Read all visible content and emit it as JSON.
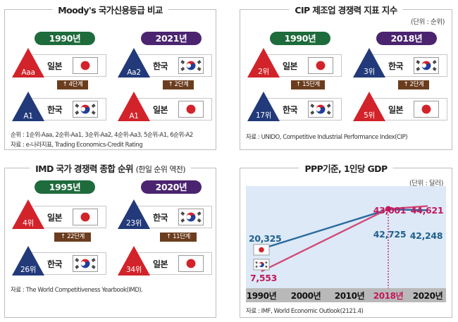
{
  "colors": {
    "red": "#d2232a",
    "navy": "#223a7a",
    "green": "#1e6b3c",
    "purple": "#4b2470",
    "brown": "#6b3d1e",
    "korea_line": "#2a6a9e",
    "japan_line": "#d04a79",
    "highlight": "#c2185b"
  },
  "moody": {
    "title": "Moody's 국가신용등급 비교",
    "left_year": "1990년",
    "right_year": "2021년",
    "left_top": {
      "grade": "Aaa",
      "country": "일본",
      "flag": "japan-flag-icon"
    },
    "left_bottom": {
      "grade": "A1",
      "country": "한국",
      "flag": "korea-flag-icon"
    },
    "left_step": "↑ 4단계",
    "right_top": {
      "grade": "Aa2",
      "country": "한국",
      "flag": "korea-flag-icon"
    },
    "right_bottom": {
      "grade": "A1",
      "country": "일본",
      "flag": "japan-flag-icon"
    },
    "right_step": "↑ 2단계",
    "note1": "순위 : 1순위-Aaa, 2순위-Aa1, 3순위-Aa2, 4순위-Aa3, 5순위-A1, 6순위-A2",
    "note2": "자료 : e-나라지표, Trading Economics-Credit Rating"
  },
  "cip": {
    "title": "CIP 제조업 경쟁력 지표 지수",
    "unit": "(단위 : 순위)",
    "left_year": "1990년",
    "right_year": "2018년",
    "left_top": {
      "grade": "2위",
      "country": "일본",
      "flag": "japan-flag-icon"
    },
    "left_bottom": {
      "grade": "17위",
      "country": "한국",
      "flag": "korea-flag-icon"
    },
    "left_step": "↑ 15단계",
    "right_top": {
      "grade": "3위",
      "country": "한국",
      "flag": "korea-flag-icon"
    },
    "right_bottom": {
      "grade": "5위",
      "country": "일본",
      "flag": "japan-flag-icon"
    },
    "right_step": "↑ 2단계",
    "note1": "자료 : UNIDO, Competitive Industrial Performance Index(CIP)"
  },
  "imd": {
    "title": "IMD 국가 경쟁력 종합 순위",
    "title_sub": "(한일 순위 역전)",
    "left_year": "1995년",
    "right_year": "2020년",
    "left_top": {
      "grade": "4위",
      "country": "일본",
      "flag": "japan-flag-icon"
    },
    "left_bottom": {
      "grade": "26위",
      "country": "한국",
      "flag": "korea-flag-icon"
    },
    "left_step": "↑ 22단계",
    "right_top": {
      "grade": "23위",
      "country": "한국",
      "flag": "korea-flag-icon"
    },
    "right_bottom": {
      "grade": "34위",
      "country": "일본",
      "flag": "japan-flag-icon"
    },
    "right_step": "↑ 11단계",
    "note1": "자료 : The World Competitiveness Yearbook(IMD)."
  },
  "ppp": {
    "title": "PPP기준, 1인당 GDP",
    "unit": "(단위 : 달러)",
    "note1": "자료 : IMF, World Economic Outlook(2121.4)"
  },
  "chart_data": {
    "type": "line",
    "title": "PPP기준, 1인당 GDP",
    "x": [
      "1990년",
      "2000년",
      "2010년",
      "2018년",
      "2020년"
    ],
    "highlight_x": "2018년",
    "series": [
      {
        "name": "일본",
        "flag": "japan-flag-icon",
        "color": "#2a6a9e",
        "points": [
          {
            "x": "1990년",
            "y": 20325
          },
          {
            "x": "2018년",
            "y": 42725
          },
          {
            "x": "2020년",
            "y": 42248
          }
        ]
      },
      {
        "name": "한국",
        "flag": "korea-flag-icon",
        "color": "#d04a79",
        "points": [
          {
            "x": "1990년",
            "y": 7553
          },
          {
            "x": "2018년",
            "y": 43001
          },
          {
            "x": "2020년",
            "y": 44621
          }
        ]
      }
    ],
    "labels": [
      "20,325",
      "7,553",
      "43,001",
      "42,725",
      "44,621",
      "42,248"
    ]
  }
}
